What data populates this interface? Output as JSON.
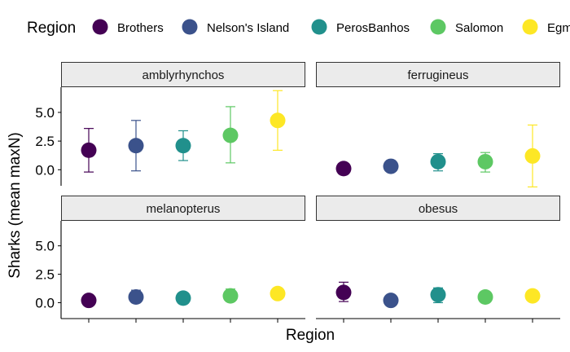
{
  "chart_data": {
    "type": "scatter",
    "subtype": "point-with-error-bars, faceted 2x2",
    "ylabel": "Sharks (mean maxN)",
    "xlabel": "Region",
    "legend": {
      "title": "Region",
      "placement": "top",
      "entries": [
        {
          "name": "Brothers",
          "color": "#440154"
        },
        {
          "name": "Nelson's Island",
          "color": "#3B528B"
        },
        {
          "name": "PerosBanhos",
          "color": "#21908C"
        },
        {
          "name": "Salomon",
          "color": "#5DC863"
        },
        {
          "name": "Egmont",
          "color": "#FDE725"
        }
      ]
    },
    "categories": [
      "Brothers",
      "Nelson's Island",
      "PerosBanhos",
      "Salomon",
      "Egmont"
    ],
    "ylim": [
      -1.4,
      7.2
    ],
    "yticks": [
      0.0,
      2.5,
      5.0
    ],
    "ytick_labels": [
      "0.0",
      "2.5",
      "5.0"
    ],
    "grid": false,
    "facets": [
      {
        "title": "amblyrhynchos",
        "points": [
          {
            "region": "Brothers",
            "mean": 1.7,
            "low": -0.2,
            "high": 3.6
          },
          {
            "region": "Nelson's Island",
            "mean": 2.1,
            "low": -0.1,
            "high": 4.3
          },
          {
            "region": "PerosBanhos",
            "mean": 2.1,
            "low": 0.8,
            "high": 3.4
          },
          {
            "region": "Salomon",
            "mean": 3.0,
            "low": 0.6,
            "high": 5.5
          },
          {
            "region": "Egmont",
            "mean": 4.3,
            "low": 1.7,
            "high": 6.9
          }
        ]
      },
      {
        "title": "ferrugineus",
        "points": [
          {
            "region": "Brothers",
            "mean": 0.1,
            "low": 0.1,
            "high": 0.1
          },
          {
            "region": "Nelson's Island",
            "mean": 0.3,
            "low": 0.3,
            "high": 0.3
          },
          {
            "region": "PerosBanhos",
            "mean": 0.7,
            "low": -0.1,
            "high": 1.4
          },
          {
            "region": "Salomon",
            "mean": 0.7,
            "low": -0.2,
            "high": 1.5
          },
          {
            "region": "Egmont",
            "mean": 1.2,
            "low": -1.5,
            "high": 3.9
          }
        ]
      },
      {
        "title": "melanopterus",
        "points": [
          {
            "region": "Brothers",
            "mean": 0.2,
            "low": 0.2,
            "high": 0.2
          },
          {
            "region": "Nelson's Island",
            "mean": 0.5,
            "low": 0.0,
            "high": 1.1
          },
          {
            "region": "PerosBanhos",
            "mean": 0.4,
            "low": 0.1,
            "high": 0.8
          },
          {
            "region": "Salomon",
            "mean": 0.6,
            "low": 0.1,
            "high": 1.2
          },
          {
            "region": "Egmont",
            "mean": 0.8,
            "low": 0.5,
            "high": 1.1
          }
        ]
      },
      {
        "title": "obesus",
        "points": [
          {
            "region": "Brothers",
            "mean": 0.9,
            "low": 0.1,
            "high": 1.8
          },
          {
            "region": "Nelson's Island",
            "mean": 0.2,
            "low": 0.2,
            "high": 0.2
          },
          {
            "region": "PerosBanhos",
            "mean": 0.7,
            "low": 0.0,
            "high": 1.3
          },
          {
            "region": "Salomon",
            "mean": 0.5,
            "low": 0.5,
            "high": 0.5
          },
          {
            "region": "Egmont",
            "mean": 0.6,
            "low": 0.6,
            "high": 0.6
          }
        ]
      }
    ]
  }
}
